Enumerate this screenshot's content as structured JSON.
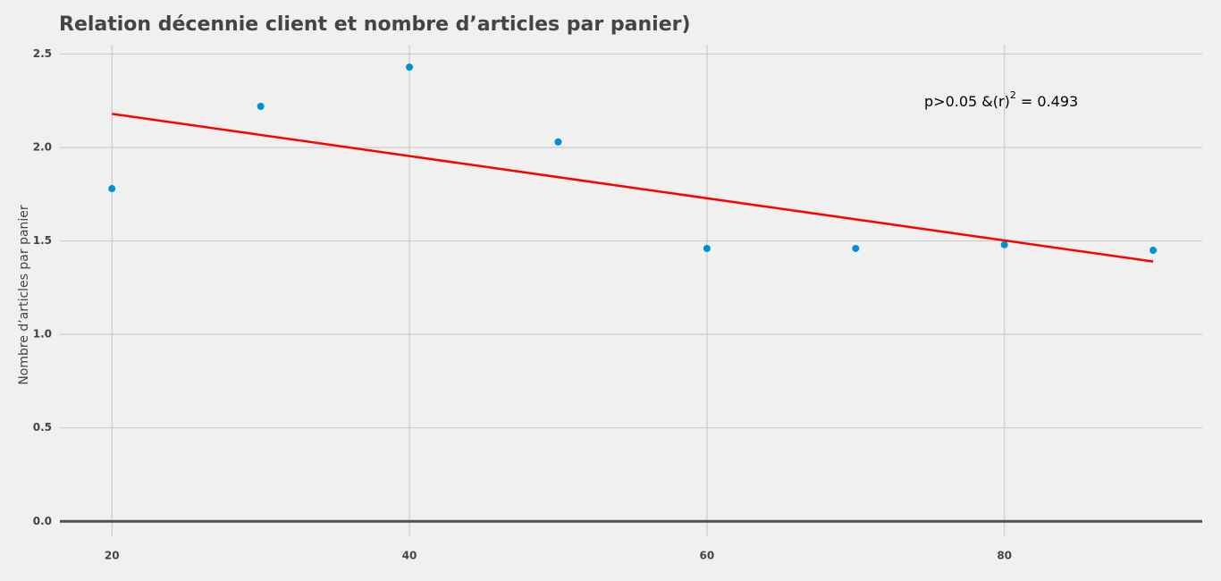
{
  "chart_data": {
    "type": "scatter",
    "title": "Relation décennie client et nombre d’articles par panier)",
    "y_label": "Nombre d’articles par panier",
    "annotation": [
      "p>0.05 &(r)",
      "2",
      " = 0.493"
    ],
    "x": [
      20,
      30,
      40,
      50,
      60,
      70,
      80,
      90
    ],
    "values": [
      1.78,
      2.22,
      2.43,
      2.03,
      1.46,
      1.46,
      1.48,
      1.45
    ],
    "color": "#008fd5",
    "fit": {
      "x": [
        20,
        90
      ],
      "values": [
        2.18,
        1.39
      ],
      "color": "#ff0000"
    },
    "xlim": [
      16.5,
      93.3
    ],
    "xticks": [
      20,
      40,
      60,
      80
    ],
    "ylim": [
      -0.08,
      2.55
    ],
    "yticks": [
      {
        "value": 0,
        "label": "0.0"
      },
      0.5,
      {
        "value": 1,
        "label": "1.0"
      },
      1.5,
      {
        "value": 2,
        "label": "2.0"
      },
      2.5
    ],
    "grid": true
  }
}
